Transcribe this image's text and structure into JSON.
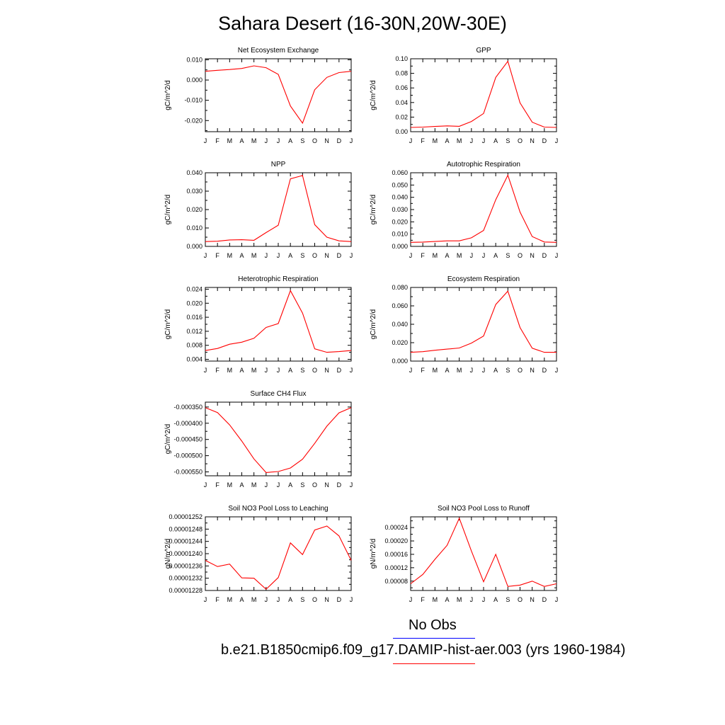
{
  "title": "Sahara Desert (16-30N,20W-30E)",
  "colors": {
    "model": "#ff0000",
    "obs": "#0000ff",
    "axis": "#000000"
  },
  "legend": {
    "obs_label": "No Obs",
    "case_label": "b.e21.B1850cmip6.f09_g17.DAMIP-hist-aer.003 (yrs 1960-1984)"
  },
  "months": [
    "J",
    "F",
    "M",
    "A",
    "M",
    "J",
    "J",
    "A",
    "S",
    "O",
    "N",
    "D",
    "J"
  ],
  "chart_data": [
    {
      "type": "line",
      "title": "Net Ecosystem Exchange",
      "ylabel": "gC/m^2/d",
      "ylim": [
        -0.0255,
        0.0105
      ],
      "yticks": [
        -0.02,
        -0.01,
        0.0,
        0.01
      ],
      "ytick_labels": [
        "-0.020",
        "-0.010",
        "0.000",
        "0.010"
      ],
      "values": [
        0.0043,
        0.0048,
        0.0052,
        0.0057,
        0.007,
        0.0061,
        0.0028,
        -0.0128,
        -0.0213,
        -0.0048,
        0.0013,
        0.0037,
        0.0043
      ]
    },
    {
      "type": "line",
      "title": "GPP",
      "ylabel": "gC/m^2/d",
      "ylim": [
        0.0,
        0.1
      ],
      "yticks": [
        0.0,
        0.02,
        0.04,
        0.06,
        0.08,
        0.1
      ],
      "ytick_labels": [
        "0.00",
        "0.02",
        "0.04",
        "0.06",
        "0.08",
        "0.10"
      ],
      "values": [
        0.0058,
        0.0063,
        0.0072,
        0.008,
        0.0074,
        0.014,
        0.025,
        0.0745,
        0.0965,
        0.0395,
        0.013,
        0.0063,
        0.0058
      ]
    },
    {
      "type": "line",
      "title": "NPP",
      "ylabel": "gC/m^2/d",
      "ylim": [
        0.0,
        0.04
      ],
      "yticks": [
        0.0,
        0.01,
        0.02,
        0.03,
        0.04
      ],
      "ytick_labels": [
        "0.000",
        "0.010",
        "0.020",
        "0.030",
        "0.040"
      ],
      "values": [
        0.0026,
        0.0028,
        0.0035,
        0.0036,
        0.0033,
        0.0075,
        0.0115,
        0.0367,
        0.0385,
        0.0118,
        0.005,
        0.003,
        0.0026
      ]
    },
    {
      "type": "line",
      "title": "Autotrophic Respiration",
      "ylabel": "gC/m^2/d",
      "ylim": [
        0.0,
        0.06
      ],
      "yticks": [
        0.0,
        0.01,
        0.02,
        0.03,
        0.04,
        0.05,
        0.06
      ],
      "ytick_labels": [
        "0.000",
        "0.010",
        "0.020",
        "0.030",
        "0.040",
        "0.050",
        "0.060"
      ],
      "values": [
        0.0033,
        0.0035,
        0.004,
        0.0045,
        0.0045,
        0.007,
        0.013,
        0.038,
        0.058,
        0.028,
        0.008,
        0.0036,
        0.0033
      ]
    },
    {
      "type": "line",
      "title": "Heterotrophic Respiration",
      "ylabel": "gC/m^2/d",
      "ylim": [
        0.0035,
        0.0245
      ],
      "yticks": [
        0.004,
        0.008,
        0.012,
        0.016,
        0.02,
        0.024
      ],
      "ytick_labels": [
        "0.004",
        "0.008",
        "0.012",
        "0.016",
        "0.020",
        "0.024"
      ],
      "values": [
        0.0065,
        0.0071,
        0.0083,
        0.0089,
        0.01,
        0.0131,
        0.0142,
        0.0236,
        0.0172,
        0.007,
        0.006,
        0.0062,
        0.0065
      ]
    },
    {
      "type": "line",
      "title": "Ecosystem Respiration",
      "ylabel": "gC/m^2/d",
      "ylim": [
        0.0,
        0.08
      ],
      "yticks": [
        0.0,
        0.02,
        0.04,
        0.06,
        0.08
      ],
      "ytick_labels": [
        "0.000",
        "0.020",
        "0.040",
        "0.060",
        "0.080"
      ],
      "values": [
        0.0095,
        0.0102,
        0.0118,
        0.013,
        0.0142,
        0.0195,
        0.0272,
        0.0615,
        0.076,
        0.0365,
        0.014,
        0.0095,
        0.0095
      ]
    },
    {
      "type": "line",
      "title": "Surface CH4 Flux",
      "ylabel": "gC/m^2/d",
      "ylim": [
        -0.000562,
        -0.000335
      ],
      "yticks": [
        -0.00055,
        -0.0005,
        -0.00045,
        -0.0004,
        -0.00035
      ],
      "ytick_labels": [
        "-0.000550",
        "-0.000500",
        "-0.000450",
        "-0.000400",
        "-0.000350"
      ],
      "values": [
        -0.000352,
        -0.000367,
        -0.000405,
        -0.000455,
        -0.00051,
        -0.000552,
        -0.000549,
        -0.000538,
        -0.000511,
        -0.000462,
        -0.000409,
        -0.000368,
        -0.000352
      ]
    },
    {
      "type": "line",
      "title": "Soil NO3 Pool Loss to Leaching",
      "ylabel": "gN/m^2/d",
      "ylim": [
        1.228e-05,
        1.252e-05
      ],
      "yticks": [
        1.228e-05,
        1.232e-05,
        1.236e-05,
        1.24e-05,
        1.244e-05,
        1.248e-05,
        1.252e-05
      ],
      "ytick_labels": [
        "0.00001228",
        "0.00001232",
        "0.00001236",
        "0.00001240",
        "0.00001244",
        "0.00001248",
        "0.00001252"
      ],
      "values": [
        1.2378e-05,
        1.2358e-05,
        1.2366e-05,
        1.2321e-05,
        1.232e-05,
        1.2284e-05,
        1.2322e-05,
        1.2435e-05,
        1.2397e-05,
        1.2477e-05,
        1.249e-05,
        1.2458e-05,
        1.2378e-05
      ]
    },
    {
      "type": "line",
      "title": "Soil NO3 Pool Loss to Runoff",
      "ylabel": "gN/m^2/d",
      "ylim": [
        5.2e-05,
        0.000272
      ],
      "yticks": [
        8e-05,
        0.00012,
        0.00016,
        0.0002,
        0.00024
      ],
      "ytick_labels": [
        "0.00008",
        "0.00012",
        "0.00016",
        "0.00020",
        "0.00024"
      ],
      "values": [
        7.2e-05,
        0.0001,
        0.000145,
        0.000187,
        0.000268,
        0.00017,
        7.8e-05,
        0.00016,
        6.4e-05,
        6.8e-05,
        8e-05,
        6.4e-05,
        7.2e-05
      ]
    }
  ]
}
